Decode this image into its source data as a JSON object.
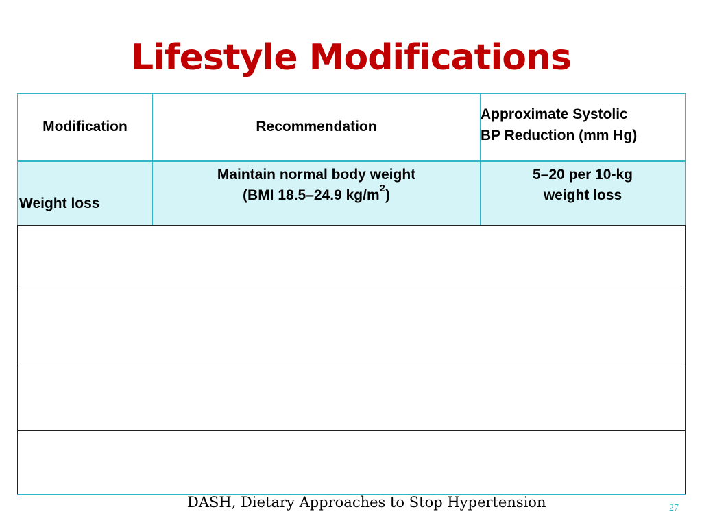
{
  "slide": {
    "title": "Lifestyle Modifications",
    "footnote": "DASH, Dietary Approaches to Stop Hypertension",
    "page_number": "27"
  },
  "table": {
    "headers": {
      "modification": "Modification",
      "recommendation": "Recommendation",
      "reduction_line1": "Approximate Systolic",
      "reduction_line2": "BP Reduction (mm Hg)"
    },
    "rows": [
      {
        "modification": "Weight loss",
        "recommendation_line1": "Maintain normal body weight",
        "recommendation_line2_pre": "(BMI 18.5–24.9 kg/m",
        "recommendation_sup": "2",
        "recommendation_line2_post": ")",
        "reduction_line1": "5–20 per 10-kg",
        "reduction_line2": "weight loss"
      }
    ]
  },
  "colors": {
    "title": "#c00000",
    "table_border": "#33b5c9",
    "highlight_row": "#d5f4f8",
    "page_number": "#33b5c9"
  }
}
